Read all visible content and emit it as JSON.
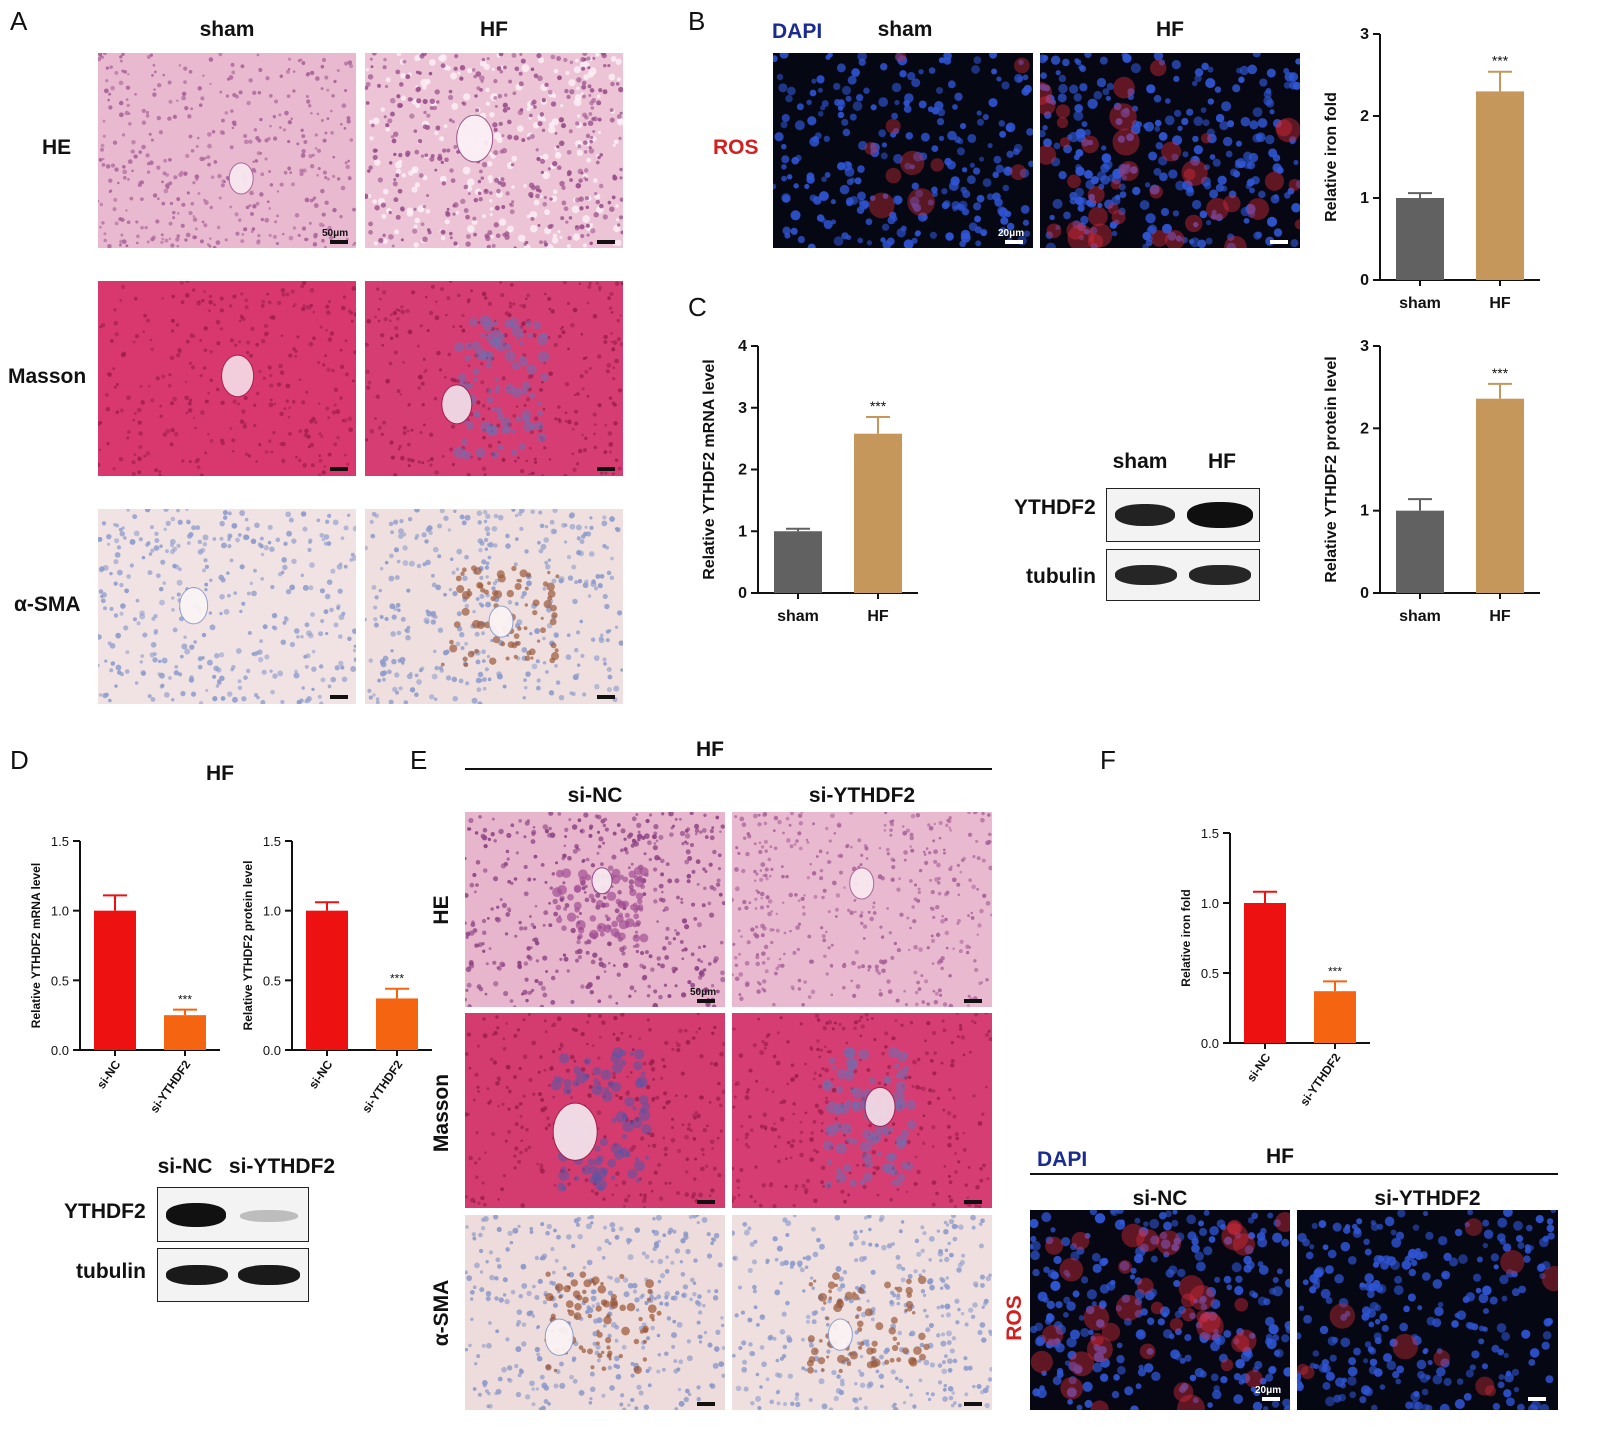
{
  "panels": {
    "A": {
      "label": "A",
      "columns": [
        "sham",
        "HF"
      ],
      "rows": [
        "HE",
        "Masson",
        "α-SMA"
      ],
      "scale_text": "50μm"
    },
    "B": {
      "label": "B",
      "stain_dapi": "DAPI",
      "columns": [
        "sham",
        "HF"
      ],
      "row": "ROS",
      "scale_text": "20μm"
    },
    "C": {
      "label": "C",
      "blot_columns": [
        "sham",
        "HF"
      ],
      "blot_rows": [
        "YTHDF2",
        "tubulin"
      ]
    },
    "D": {
      "label": "D",
      "title": "HF",
      "blot_columns": [
        "si-NC",
        "si-YTHDF2"
      ],
      "blot_rows": [
        "YTHDF2",
        "tubulin"
      ]
    },
    "E": {
      "label": "E",
      "title": "HF",
      "columns": [
        "si-NC",
        "si-YTHDF2"
      ],
      "rows": [
        "HE",
        "Masson",
        "α-SMA"
      ],
      "scale_text": "50μm"
    },
    "F": {
      "label": "F",
      "stain_dapi": "DAPI",
      "title": "HF",
      "columns": [
        "si-NC",
        "si-YTHDF2"
      ],
      "row": "ROS",
      "scale_text": "20μm"
    }
  },
  "chart_data": [
    {
      "id": "B-iron",
      "type": "bar",
      "categories": [
        "sham",
        "HF"
      ],
      "values": [
        1.0,
        2.3
      ],
      "errors": [
        0.06,
        0.24
      ],
      "colors": [
        "#616161",
        "#c5975a"
      ],
      "ylabel": "Relative iron fold",
      "ylim": [
        0,
        3
      ],
      "yticks": [
        "0",
        "1",
        "2",
        "3"
      ],
      "annotations": [
        {
          "category": "HF",
          "text": "***"
        }
      ]
    },
    {
      "id": "C-mrna",
      "type": "bar",
      "categories": [
        "sham",
        "HF"
      ],
      "values": [
        1.0,
        2.58
      ],
      "errors": [
        0.04,
        0.27
      ],
      "colors": [
        "#616161",
        "#c5975a"
      ],
      "ylabel": "Relative YTHDF2 mRNA level",
      "ylim": [
        0,
        4
      ],
      "yticks": [
        "0",
        "1",
        "2",
        "3",
        "4"
      ],
      "annotations": [
        {
          "category": "HF",
          "text": "***"
        }
      ]
    },
    {
      "id": "C-protein",
      "type": "bar",
      "categories": [
        "sham",
        "HF"
      ],
      "values": [
        1.0,
        2.36
      ],
      "errors": [
        0.14,
        0.18
      ],
      "colors": [
        "#616161",
        "#c5975a"
      ],
      "ylabel": "Relative YTHDF2 protein level",
      "ylim": [
        0,
        3
      ],
      "yticks": [
        "0",
        "1",
        "2",
        "3"
      ],
      "annotations": [
        {
          "category": "HF",
          "text": "***"
        }
      ]
    },
    {
      "id": "D-mrna",
      "type": "bar",
      "categories": [
        "si-NC",
        "si-YTHDF2"
      ],
      "values": [
        1.0,
        0.25
      ],
      "errors": [
        0.11,
        0.04
      ],
      "colors": [
        "#ee1111",
        "#f56410"
      ],
      "ylabel": "Relative YTHDF2 mRNA level",
      "ylim": [
        0,
        1.5
      ],
      "yticks": [
        "0.0",
        "0.5",
        "1.0",
        "1.5"
      ],
      "annotations": [
        {
          "category": "si-YTHDF2",
          "text": "***"
        }
      ]
    },
    {
      "id": "D-protein",
      "type": "bar",
      "categories": [
        "si-NC",
        "si-YTHDF2"
      ],
      "values": [
        1.0,
        0.37
      ],
      "errors": [
        0.06,
        0.07
      ],
      "colors": [
        "#ee1111",
        "#f56410"
      ],
      "ylabel": "Relative YTHDF2 protein level",
      "ylim": [
        0,
        1.5
      ],
      "yticks": [
        "0.0",
        "0.5",
        "1.0",
        "1.5"
      ],
      "annotations": [
        {
          "category": "si-YTHDF2",
          "text": "***"
        }
      ]
    },
    {
      "id": "F-iron",
      "type": "bar",
      "categories": [
        "si-NC",
        "si-YTHDF2"
      ],
      "values": [
        1.0,
        0.37
      ],
      "errors": [
        0.08,
        0.07
      ],
      "colors": [
        "#ee1111",
        "#f56410"
      ],
      "ylabel": "Relative iron fold",
      "ylim": [
        0,
        1.5
      ],
      "yticks": [
        "0.0",
        "0.5",
        "1.0",
        "1.5"
      ],
      "annotations": [
        {
          "category": "si-YTHDF2",
          "text": "***"
        }
      ]
    }
  ]
}
